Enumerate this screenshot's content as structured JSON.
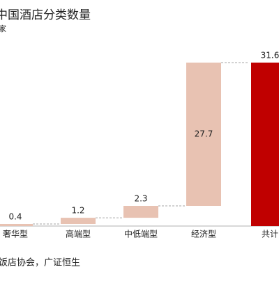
{
  "chart_data": {
    "type": "waterfall",
    "title": "中国酒店分类数量",
    "subtitle": "家",
    "categories": [
      "奢华型",
      "高端型",
      "中低端型",
      "经济型"
    ],
    "values": [
      0.4,
      1.2,
      2.3,
      27.7
    ],
    "total_label": "共计",
    "total": 31.6,
    "color": "#e8c2b2",
    "total_color": "#c00000",
    "source": "饭店协会，广证恒生"
  }
}
